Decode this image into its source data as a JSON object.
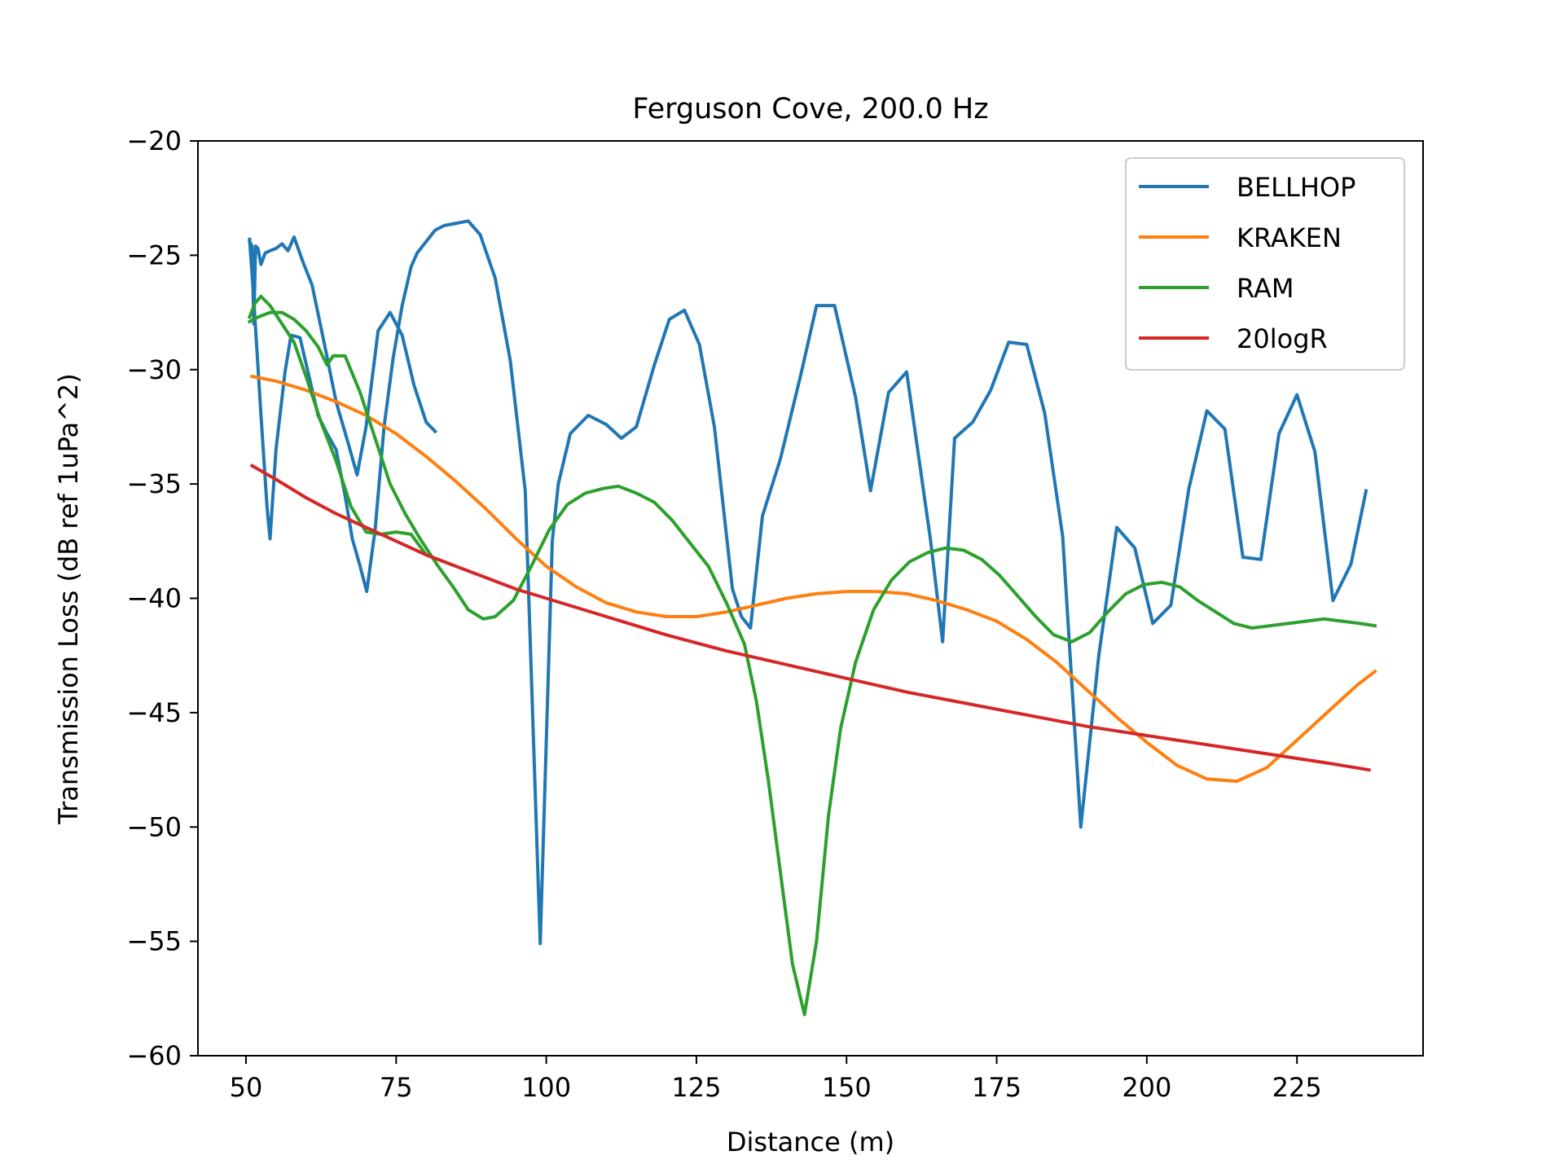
{
  "chart_data": {
    "type": "line",
    "title": "Ferguson Cove, 200.0 Hz",
    "xlabel": "Distance (m)",
    "ylabel": "Transmission Loss (dB ref 1uPa^2)",
    "xlim": [
      42,
      246
    ],
    "ylim": [
      -60,
      -20
    ],
    "xticks": [
      50,
      75,
      100,
      125,
      150,
      175,
      200,
      225
    ],
    "yticks": [
      -20,
      -25,
      -30,
      -35,
      -40,
      -45,
      -50,
      -55,
      -60
    ],
    "xtick_labels": [
      "50",
      "75",
      "100",
      "125",
      "150",
      "175",
      "200",
      "225"
    ],
    "ytick_labels": [
      "−20",
      "−25",
      "−30",
      "−35",
      "−40",
      "−45",
      "−50",
      "−55",
      "−60"
    ],
    "grid": false,
    "legend": "top-right",
    "series": [
      {
        "name": "BELLHOP",
        "color": "#1f77b4",
        "segments": [
          [
            [
              50.6,
              -24.4
            ],
            [
              51.0,
              -24.6
            ],
            [
              51.3,
              -28.0
            ],
            [
              51.6,
              -24.6
            ],
            [
              52.0,
              -24.7
            ],
            [
              52.5,
              -25.4
            ],
            [
              53.2,
              -24.9
            ],
            [
              54.0,
              -24.8
            ],
            [
              55.0,
              -24.7
            ],
            [
              56.0,
              -24.5
            ],
            [
              57.0,
              -24.8
            ],
            [
              58.0,
              -24.2
            ],
            [
              59.5,
              -25.3
            ],
            [
              61.0,
              -26.3
            ],
            [
              63.0,
              -28.8
            ],
            [
              65.0,
              -31.4
            ],
            [
              67.0,
              -33.2
            ],
            [
              68.5,
              -34.6
            ],
            [
              70.0,
              -32.5
            ],
            [
              72.0,
              -28.3
            ],
            [
              74.0,
              -27.5
            ],
            [
              76.0,
              -28.5
            ],
            [
              78.0,
              -30.7
            ],
            [
              80.0,
              -32.3
            ],
            [
              81.5,
              -32.7
            ]
          ],
          [
            [
              50.6,
              -24.3
            ],
            [
              51.2,
              -26.5
            ],
            [
              52.5,
              -32.0
            ],
            [
              53.5,
              -36.0
            ],
            [
              54.0,
              -37.4
            ],
            [
              55.0,
              -33.5
            ],
            [
              56.5,
              -30.1
            ],
            [
              57.5,
              -28.5
            ],
            [
              59.0,
              -28.6
            ],
            [
              60.5,
              -30.3
            ],
            [
              62.0,
              -32.0
            ],
            [
              63.5,
              -32.8
            ],
            [
              65.0,
              -33.5
            ],
            [
              66.5,
              -35.5
            ],
            [
              67.7,
              -37.4
            ],
            [
              69.0,
              -38.6
            ],
            [
              70.1,
              -39.7
            ],
            [
              71.5,
              -37.0
            ],
            [
              73.0,
              -32.5
            ],
            [
              74.5,
              -29.5
            ],
            [
              76.0,
              -27.2
            ],
            [
              77.5,
              -25.5
            ],
            [
              78.5,
              -24.9
            ],
            [
              80.0,
              -24.4
            ],
            [
              81.5,
              -23.9
            ],
            [
              83.0,
              -23.7
            ],
            [
              85.0,
              -23.6
            ],
            [
              87.0,
              -23.5
            ],
            [
              89.0,
              -24.1
            ],
            [
              91.5,
              -26.0
            ],
            [
              94.0,
              -29.6
            ],
            [
              96.5,
              -35.3
            ],
            [
              99.0,
              -55.1
            ],
            [
              101.0,
              -37.5
            ],
            [
              102.0,
              -35.0
            ],
            [
              104.0,
              -32.8
            ],
            [
              107.0,
              -32.0
            ],
            [
              110.0,
              -32.4
            ],
            [
              112.5,
              -33.0
            ],
            [
              115.0,
              -32.5
            ],
            [
              118.0,
              -29.8
            ],
            [
              120.5,
              -27.8
            ],
            [
              123.0,
              -27.4
            ],
            [
              125.5,
              -28.9
            ],
            [
              128.0,
              -32.5
            ],
            [
              131.0,
              -39.6
            ],
            [
              132.5,
              -40.8
            ],
            [
              134.0,
              -41.3
            ],
            [
              136.0,
              -36.4
            ],
            [
              139.0,
              -33.9
            ],
            [
              142.5,
              -30.1
            ],
            [
              145.0,
              -27.2
            ],
            [
              148.0,
              -27.2
            ],
            [
              151.5,
              -31.2
            ],
            [
              154.0,
              -35.3
            ],
            [
              157.0,
              -31.0
            ],
            [
              160.0,
              -30.1
            ],
            [
              164.0,
              -37.5
            ],
            [
              166.0,
              -41.9
            ],
            [
              168.0,
              -33.0
            ],
            [
              171.0,
              -32.3
            ],
            [
              174.0,
              -30.9
            ],
            [
              177.0,
              -28.8
            ],
            [
              180.0,
              -28.9
            ],
            [
              183.0,
              -31.9
            ],
            [
              186.0,
              -37.3
            ],
            [
              189.0,
              -50.0
            ],
            [
              192.0,
              -42.5
            ],
            [
              195.0,
              -36.9
            ],
            [
              198.0,
              -37.8
            ],
            [
              201.0,
              -41.1
            ],
            [
              204.0,
              -40.3
            ],
            [
              207.0,
              -35.2
            ],
            [
              210.0,
              -31.8
            ],
            [
              213.0,
              -32.6
            ],
            [
              216.0,
              -38.2
            ],
            [
              219.0,
              -38.3
            ],
            [
              222.0,
              -32.8
            ],
            [
              225.0,
              -31.1
            ],
            [
              228.0,
              -33.6
            ],
            [
              231.0,
              -40.1
            ],
            [
              234.0,
              -38.5
            ],
            [
              236.5,
              -35.3
            ]
          ]
        ]
      },
      {
        "name": "KRAKEN",
        "color": "#ff7f0e",
        "segments": [
          [
            [
              51,
              -30.3
            ],
            [
              55,
              -30.5
            ],
            [
              60,
              -30.9
            ],
            [
              65,
              -31.4
            ],
            [
              70,
              -32.0
            ],
            [
              75,
              -32.8
            ],
            [
              80,
              -33.8
            ],
            [
              85,
              -34.9
            ],
            [
              90,
              -36.1
            ],
            [
              95,
              -37.4
            ],
            [
              100,
              -38.6
            ],
            [
              105,
              -39.5
            ],
            [
              110,
              -40.2
            ],
            [
              115,
              -40.6
            ],
            [
              120,
              -40.8
            ],
            [
              125,
              -40.8
            ],
            [
              130,
              -40.6
            ],
            [
              135,
              -40.3
            ],
            [
              140,
              -40.0
            ],
            [
              145,
              -39.8
            ],
            [
              150,
              -39.7
            ],
            [
              155,
              -39.7
            ],
            [
              160,
              -39.8
            ],
            [
              165,
              -40.1
            ],
            [
              170,
              -40.5
            ],
            [
              175,
              -41.0
            ],
            [
              180,
              -41.8
            ],
            [
              185,
              -42.8
            ],
            [
              190,
              -44.0
            ],
            [
              195,
              -45.2
            ],
            [
              200,
              -46.3
            ],
            [
              205,
              -47.3
            ],
            [
              210,
              -47.9
            ],
            [
              215,
              -48.0
            ],
            [
              220,
              -47.4
            ],
            [
              225,
              -46.2
            ],
            [
              230,
              -45.0
            ],
            [
              235,
              -43.8
            ],
            [
              238,
              -43.2
            ]
          ]
        ]
      },
      {
        "name": "RAM",
        "color": "#2ca02c",
        "segments": [
          [
            [
              50.6,
              -27.7
            ],
            [
              51.5,
              -27.1
            ],
            [
              52.5,
              -26.8
            ],
            [
              54.0,
              -27.2
            ],
            [
              56.0,
              -28.0
            ],
            [
              58.0,
              -28.8
            ],
            [
              60.0,
              -30.3
            ],
            [
              62.5,
              -32.3
            ],
            [
              65.0,
              -34.0
            ],
            [
              67.5,
              -36.0
            ],
            [
              70.0,
              -37.1
            ],
            [
              72.5,
              -37.2
            ],
            [
              75.0,
              -37.1
            ],
            [
              77.5,
              -37.2
            ],
            [
              80.0,
              -38.1
            ],
            [
              82.0,
              -38.3
            ],
            [
              84.0,
              -38.5
            ]
          ],
          [
            [
              50.6,
              -27.9
            ],
            [
              52.0,
              -27.7
            ],
            [
              54.0,
              -27.5
            ],
            [
              56.0,
              -27.5
            ],
            [
              58.0,
              -27.8
            ],
            [
              60.0,
              -28.3
            ],
            [
              62.0,
              -29.0
            ],
            [
              63.5,
              -29.8
            ],
            [
              64.5,
              -29.4
            ],
            [
              66.5,
              -29.4
            ],
            [
              69.0,
              -31.0
            ],
            [
              71.5,
              -33.0
            ],
            [
              74.0,
              -35.0
            ],
            [
              76.5,
              -36.3
            ],
            [
              79.0,
              -37.4
            ],
            [
              82.0,
              -38.6
            ],
            [
              84.5,
              -39.5
            ],
            [
              87.0,
              -40.5
            ],
            [
              89.5,
              -40.9
            ],
            [
              91.5,
              -40.8
            ],
            [
              94.5,
              -40.1
            ],
            [
              97.5,
              -38.6
            ],
            [
              100.5,
              -37.0
            ],
            [
              103.5,
              -35.9
            ],
            [
              106.5,
              -35.4
            ],
            [
              109.5,
              -35.2
            ],
            [
              112.0,
              -35.1
            ],
            [
              115.0,
              -35.4
            ],
            [
              118.0,
              -35.8
            ],
            [
              121.0,
              -36.6
            ],
            [
              124.0,
              -37.6
            ],
            [
              127.0,
              -38.6
            ],
            [
              130.0,
              -40.2
            ],
            [
              133.0,
              -42.0
            ],
            [
              135.0,
              -44.5
            ],
            [
              137.0,
              -48.0
            ],
            [
              139.0,
              -52.0
            ],
            [
              141.0,
              -56.0
            ],
            [
              143.0,
              -58.2
            ],
            [
              145.0,
              -55.0
            ],
            [
              147.0,
              -49.5
            ],
            [
              149.0,
              -45.7
            ],
            [
              151.5,
              -42.8
            ],
            [
              154.5,
              -40.5
            ],
            [
              157.5,
              -39.2
            ],
            [
              160.5,
              -38.4
            ],
            [
              163.5,
              -38.0
            ],
            [
              166.5,
              -37.8
            ],
            [
              169.5,
              -37.9
            ],
            [
              172.5,
              -38.3
            ],
            [
              175.5,
              -39.0
            ],
            [
              178.5,
              -39.9
            ],
            [
              181.5,
              -40.8
            ],
            [
              184.5,
              -41.6
            ],
            [
              187.5,
              -41.9
            ],
            [
              190.5,
              -41.5
            ],
            [
              193.5,
              -40.6
            ],
            [
              196.5,
              -39.8
            ],
            [
              199.5,
              -39.4
            ],
            [
              202.5,
              -39.3
            ],
            [
              205.5,
              -39.5
            ],
            [
              208.5,
              -40.1
            ],
            [
              211.5,
              -40.6
            ],
            [
              214.5,
              -41.1
            ],
            [
              217.5,
              -41.3
            ],
            [
              220.5,
              -41.2
            ],
            [
              223.5,
              -41.1
            ],
            [
              226.5,
              -41.0
            ],
            [
              229.5,
              -40.9
            ],
            [
              232.5,
              -41.0
            ],
            [
              235.5,
              -41.1
            ],
            [
              238.0,
              -41.2
            ]
          ]
        ]
      },
      {
        "name": "20logR",
        "color": "#d62728",
        "segments": [
          [
            [
              51,
              -34.2
            ],
            [
              55,
              -34.8
            ],
            [
              60,
              -35.6
            ],
            [
              65,
              -36.3
            ],
            [
              70,
              -36.9
            ],
            [
              75,
              -37.5
            ],
            [
              80,
              -38.1
            ],
            [
              85,
              -38.6
            ],
            [
              90,
              -39.1
            ],
            [
              95,
              -39.6
            ],
            [
              100,
              -40.0
            ],
            [
              110,
              -40.8
            ],
            [
              120,
              -41.6
            ],
            [
              130,
              -42.3
            ],
            [
              140,
              -42.9
            ],
            [
              150,
              -43.5
            ],
            [
              160,
              -44.1
            ],
            [
              170,
              -44.6
            ],
            [
              180,
              -45.1
            ],
            [
              190,
              -45.6
            ],
            [
              200,
              -46.0
            ],
            [
              210,
              -46.4
            ],
            [
              220,
              -46.8
            ],
            [
              230,
              -47.2
            ],
            [
              237,
              -47.5
            ]
          ]
        ]
      }
    ]
  }
}
